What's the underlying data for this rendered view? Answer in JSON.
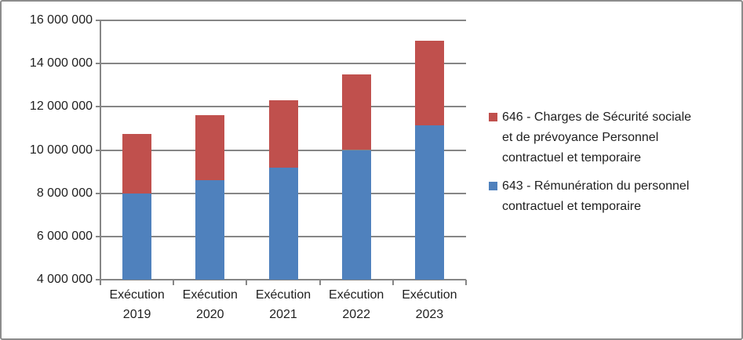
{
  "chart_data": {
    "type": "bar",
    "stacked": true,
    "orientation": "vertical",
    "categories": [
      "Exécution 2019",
      "Exécution 2020",
      "Exécution 2021",
      "Exécution 2022",
      "Exécution 2023"
    ],
    "series": [
      {
        "name": "643 - Rémunération du personnel contractuel et temporaire",
        "color": "#4F81BD",
        "values": [
          8000000,
          8600000,
          9200000,
          10000000,
          11150000
        ]
      },
      {
        "name": "646 - Charges de Sécurité sociale et de prévoyance Personnel contractuel et temporaire",
        "color": "#C0504D",
        "values": [
          2750000,
          3000000,
          3100000,
          3500000,
          3900000
        ]
      }
    ],
    "stacked_totals": [
      10750000,
      11600000,
      12300000,
      13500000,
      15050000
    ],
    "title": "",
    "xlabel": "",
    "ylabel": "",
    "ylim": [
      4000000,
      16000000
    ],
    "ytick_step": 2000000,
    "ytick_labels_top_to_bottom": [
      "16 000 000",
      "14 000 000",
      "12 000 000",
      "10 000 000",
      "8 000 000",
      "6 000 000",
      "4 000 000"
    ],
    "gridlines": true,
    "legend_position": "right"
  },
  "legend": {
    "items": [
      {
        "label": "646 - Charges de Sécurité sociale\net de prévoyance Personnel\ncontractuel et temporaire",
        "color": "#C0504D"
      },
      {
        "label": "643 - Rémunération du personnel\ncontractuel et temporaire",
        "color": "#4F81BD"
      }
    ]
  },
  "palette": {
    "series_red": "#C0504D",
    "series_blue": "#4F81BD",
    "gridline_gray": "#868686",
    "text_color": "#1f1f1f",
    "frame_border_gray": "#8c8c8c"
  }
}
